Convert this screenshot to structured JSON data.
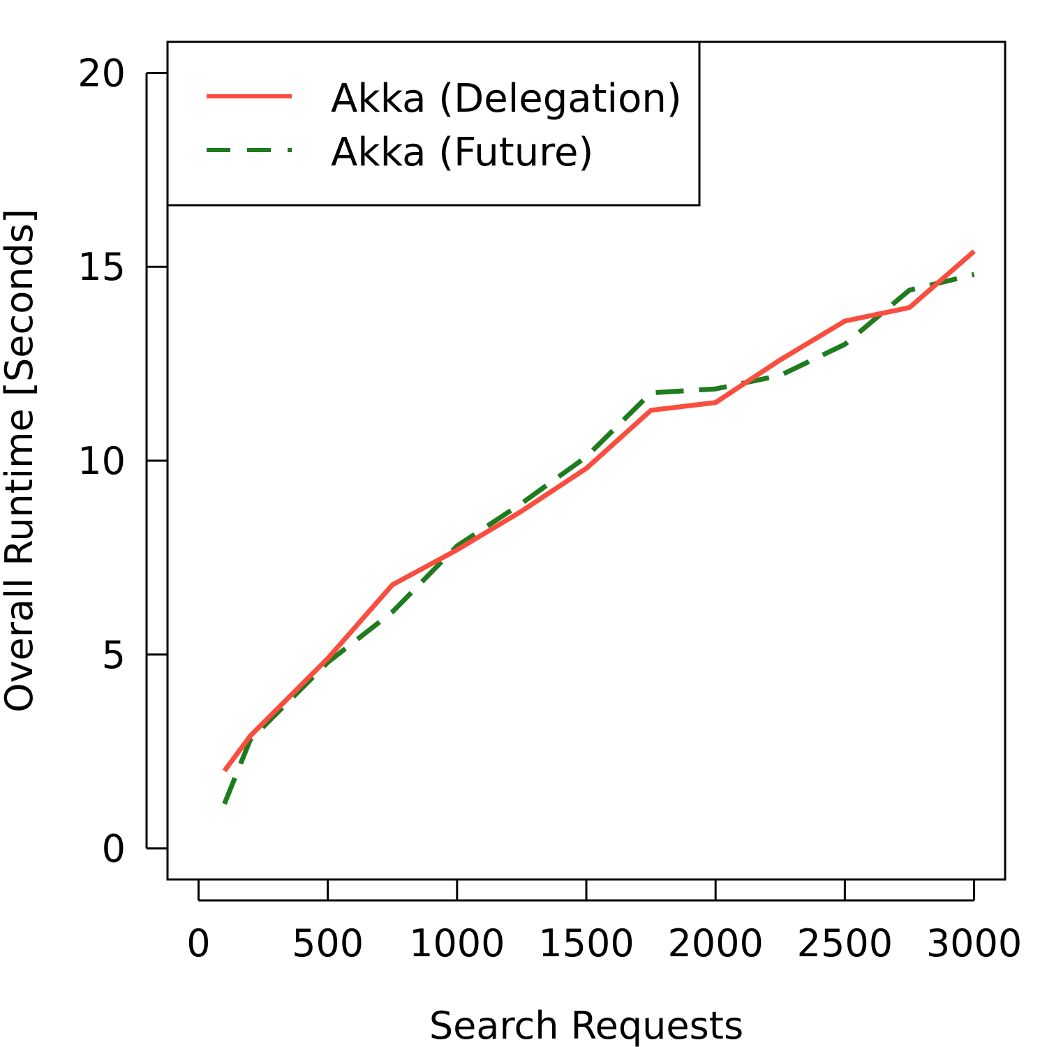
{
  "chart_data": {
    "type": "line",
    "title": "",
    "xlabel": "Search Requests",
    "ylabel": "Overall Runtime [Seconds]",
    "xlim": [
      -120,
      3120
    ],
    "ylim": [
      -0.8,
      20.8
    ],
    "xticks": [
      0,
      500,
      1000,
      1500,
      2000,
      2500,
      3000
    ],
    "yticks": [
      0,
      5,
      10,
      15,
      20
    ],
    "xtick_labels": [
      "0",
      "500",
      "1000",
      "1500",
      "2000",
      "2500",
      "3000"
    ],
    "ytick_labels": [
      "0",
      "5",
      "10",
      "15",
      "20"
    ],
    "grid": false,
    "legend_position": "top-left",
    "series": [
      {
        "name": "Akka (Delegation)",
        "color": "#f94e3f",
        "dash": "solid",
        "x": [
          100,
          200,
          500,
          750,
          1000,
          1250,
          1500,
          1750,
          2000,
          2250,
          2500,
          2750,
          3000
        ],
        "y": [
          2.0,
          2.9,
          4.9,
          6.8,
          7.7,
          8.7,
          9.8,
          11.3,
          11.5,
          12.6,
          13.6,
          13.95,
          15.4
        ]
      },
      {
        "name": "Akka (Future)",
        "color": "#1e7b1e",
        "dash": "dashed",
        "x": [
          100,
          200,
          500,
          750,
          1000,
          1250,
          1500,
          1750,
          2000,
          2250,
          2500,
          2750,
          3000
        ],
        "y": [
          1.15,
          2.8,
          4.8,
          6.1,
          7.8,
          8.9,
          10.1,
          11.75,
          11.85,
          12.2,
          13.0,
          14.4,
          14.8
        ]
      }
    ]
  }
}
